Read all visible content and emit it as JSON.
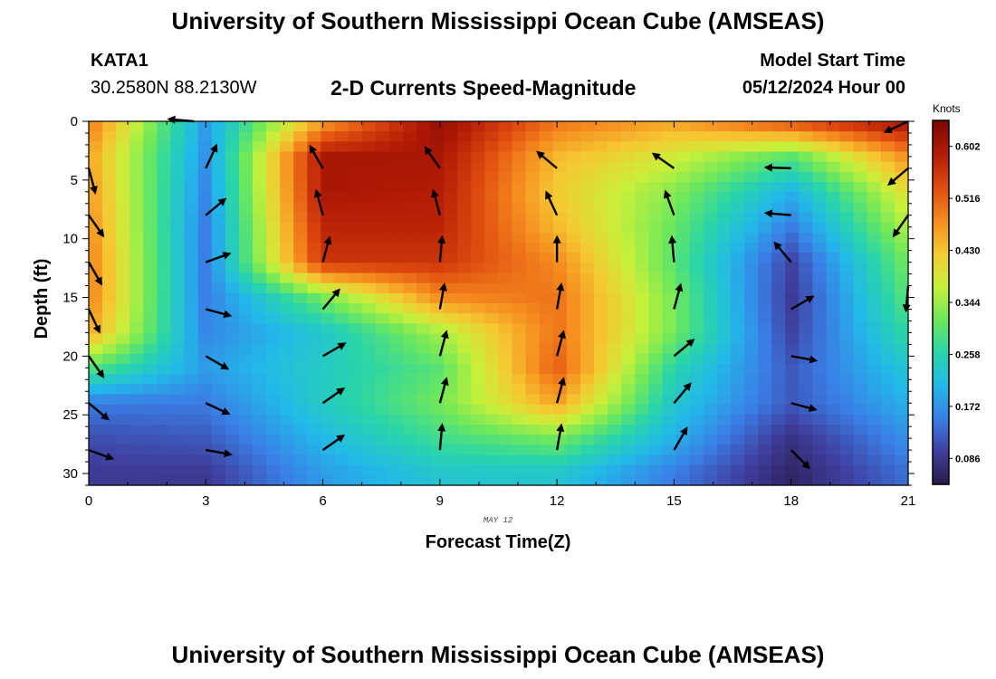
{
  "header": {
    "title": "University of Southern Mississippi Ocean Cube (AMSEAS)",
    "station": "KATA1",
    "coords": "30.2580N  88.2130W",
    "subtitle": "2-D Currents Speed-Magnitude",
    "model_start_label": "Model Start Time",
    "model_start_value": "05/12/2024 Hour 00"
  },
  "footer": {
    "title": "University of Southern Mississippi Ocean Cube (AMSEAS)"
  },
  "chart_data": {
    "type": "heatmap",
    "xlabel": "Forecast Time(Z)",
    "ylabel": "Depth (ft)",
    "date_label": "MAY 12",
    "xlim": [
      0,
      21
    ],
    "ylim": [
      0,
      31
    ],
    "y_inverted": true,
    "x_ticks": [
      0,
      3,
      6,
      9,
      12,
      15,
      18,
      21
    ],
    "y_ticks": [
      0,
      5,
      10,
      15,
      20,
      25,
      30
    ],
    "colorbar": {
      "label": "Knots",
      "min": 0.043,
      "max": 0.645,
      "ticks": [
        "0.086",
        "0.172",
        "0.258",
        "0.344",
        "0.430",
        "0.516",
        "0.602"
      ],
      "colormap": [
        "#2a1a4a",
        "#3f3f9e",
        "#3a7fe6",
        "#22b9e8",
        "#2ad5a8",
        "#6fe85a",
        "#c8f03a",
        "#f5c932",
        "#f58a1e",
        "#de4a0f",
        "#b31b05",
        "#7a0803"
      ]
    },
    "speed_field": {
      "x": [
        0,
        3,
        6,
        9,
        12,
        15,
        18,
        21
      ],
      "depth": [
        0,
        3,
        6,
        9,
        12,
        15,
        18,
        21,
        24,
        27,
        30
      ],
      "values": [
        [
          0.5,
          0.18,
          0.46,
          0.62,
          0.5,
          0.46,
          0.54,
          0.61
        ],
        [
          0.46,
          0.17,
          0.6,
          0.6,
          0.44,
          0.38,
          0.3,
          0.48
        ],
        [
          0.47,
          0.16,
          0.6,
          0.59,
          0.42,
          0.33,
          0.2,
          0.4
        ],
        [
          0.48,
          0.15,
          0.58,
          0.58,
          0.44,
          0.31,
          0.15,
          0.36
        ],
        [
          0.49,
          0.15,
          0.56,
          0.56,
          0.48,
          0.3,
          0.1,
          0.32
        ],
        [
          0.49,
          0.15,
          0.32,
          0.48,
          0.5,
          0.32,
          0.09,
          0.3
        ],
        [
          0.46,
          0.16,
          0.23,
          0.35,
          0.5,
          0.32,
          0.1,
          0.27
        ],
        [
          0.3,
          0.18,
          0.24,
          0.3,
          0.52,
          0.26,
          0.12,
          0.23
        ],
        [
          0.15,
          0.15,
          0.24,
          0.32,
          0.46,
          0.23,
          0.12,
          0.2
        ],
        [
          0.11,
          0.12,
          0.21,
          0.28,
          0.32,
          0.2,
          0.08,
          0.17
        ],
        [
          0.09,
          0.09,
          0.18,
          0.23,
          0.23,
          0.15,
          0.06,
          0.14
        ]
      ]
    },
    "vectors": [
      {
        "x": 0,
        "depth": 4,
        "dir_deg": 165
      },
      {
        "x": 0,
        "depth": 8,
        "dir_deg": 145
      },
      {
        "x": 0,
        "depth": 12,
        "dir_deg": 150
      },
      {
        "x": 0,
        "depth": 16,
        "dir_deg": 155
      },
      {
        "x": 0,
        "depth": 20,
        "dir_deg": 145
      },
      {
        "x": 0,
        "depth": 24,
        "dir_deg": 130
      },
      {
        "x": 0,
        "depth": 28,
        "dir_deg": 110
      },
      {
        "x": 2.7,
        "depth": 0,
        "dir_deg": 275
      },
      {
        "x": 3,
        "depth": 4,
        "dir_deg": 25
      },
      {
        "x": 3,
        "depth": 8,
        "dir_deg": 50
      },
      {
        "x": 3,
        "depth": 12,
        "dir_deg": 70
      },
      {
        "x": 3,
        "depth": 16,
        "dir_deg": 105
      },
      {
        "x": 3,
        "depth": 20,
        "dir_deg": 120
      },
      {
        "x": 3,
        "depth": 24,
        "dir_deg": 115
      },
      {
        "x": 3,
        "depth": 28,
        "dir_deg": 100
      },
      {
        "x": 6,
        "depth": 4,
        "dir_deg": 330
      },
      {
        "x": 6,
        "depth": 8,
        "dir_deg": 345
      },
      {
        "x": 6,
        "depth": 12,
        "dir_deg": 15
      },
      {
        "x": 6,
        "depth": 16,
        "dir_deg": 40
      },
      {
        "x": 6,
        "depth": 20,
        "dir_deg": 60
      },
      {
        "x": 6,
        "depth": 24,
        "dir_deg": 55
      },
      {
        "x": 6,
        "depth": 28,
        "dir_deg": 55
      },
      {
        "x": 9,
        "depth": 4,
        "dir_deg": 325
      },
      {
        "x": 9,
        "depth": 8,
        "dir_deg": 345
      },
      {
        "x": 9,
        "depth": 12,
        "dir_deg": 5
      },
      {
        "x": 9,
        "depth": 16,
        "dir_deg": 10
      },
      {
        "x": 9,
        "depth": 20,
        "dir_deg": 15
      },
      {
        "x": 9,
        "depth": 24,
        "dir_deg": 15
      },
      {
        "x": 9,
        "depth": 28,
        "dir_deg": 5
      },
      {
        "x": 12,
        "depth": 4,
        "dir_deg": 310
      },
      {
        "x": 12,
        "depth": 8,
        "dir_deg": 335
      },
      {
        "x": 12,
        "depth": 12,
        "dir_deg": 0
      },
      {
        "x": 12,
        "depth": 16,
        "dir_deg": 10
      },
      {
        "x": 12,
        "depth": 20,
        "dir_deg": 15
      },
      {
        "x": 12,
        "depth": 24,
        "dir_deg": 15
      },
      {
        "x": 12,
        "depth": 28,
        "dir_deg": 10
      },
      {
        "x": 15,
        "depth": 4,
        "dir_deg": 305
      },
      {
        "x": 15,
        "depth": 8,
        "dir_deg": 340
      },
      {
        "x": 15,
        "depth": 12,
        "dir_deg": 355
      },
      {
        "x": 15,
        "depth": 16,
        "dir_deg": 15
      },
      {
        "x": 15,
        "depth": 20,
        "dir_deg": 50
      },
      {
        "x": 15,
        "depth": 24,
        "dir_deg": 40
      },
      {
        "x": 15,
        "depth": 28,
        "dir_deg": 30
      },
      {
        "x": 18,
        "depth": 4,
        "dir_deg": 272
      },
      {
        "x": 18,
        "depth": 8,
        "dir_deg": 275
      },
      {
        "x": 18,
        "depth": 12,
        "dir_deg": 320
      },
      {
        "x": 18,
        "depth": 16,
        "dir_deg": 60
      },
      {
        "x": 18,
        "depth": 20,
        "dir_deg": 100
      },
      {
        "x": 18,
        "depth": 24,
        "dir_deg": 105
      },
      {
        "x": 18,
        "depth": 28,
        "dir_deg": 135
      },
      {
        "x": 21,
        "depth": 0,
        "dir_deg": 245
      },
      {
        "x": 21,
        "depth": 4,
        "dir_deg": 230
      },
      {
        "x": 21,
        "depth": 8,
        "dir_deg": 215
      },
      {
        "x": 21,
        "depth": 14,
        "dir_deg": 185
      }
    ]
  }
}
